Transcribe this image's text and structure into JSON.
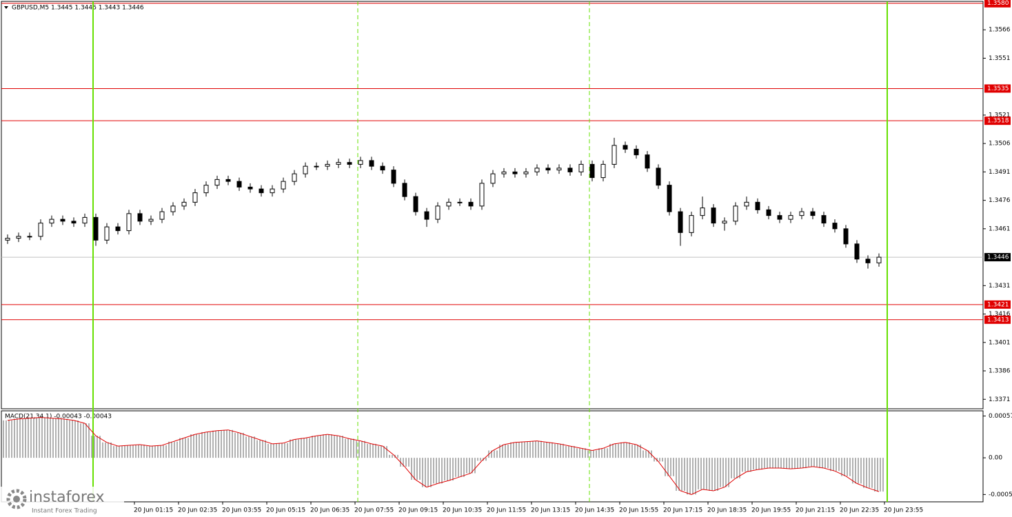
{
  "chart_data": [
    {
      "type": "candlestick",
      "title": "GBPUSD,M5 1.3445 1.3446 1.3443 1.3446",
      "x": [
        -31,
        -27,
        -23,
        -19,
        -15,
        -11,
        -7,
        -3,
        1,
        5,
        9,
        13,
        17,
        21,
        25,
        29,
        33,
        37,
        41,
        45,
        49,
        53,
        57,
        61,
        65,
        69,
        73,
        77,
        81,
        85,
        89,
        93,
        97,
        101,
        105,
        109,
        113,
        117,
        121,
        125,
        129,
        133,
        137,
        141,
        145,
        149,
        153,
        157,
        161,
        165,
        169,
        173,
        177,
        181,
        185,
        189,
        193,
        197,
        201,
        205,
        209,
        213,
        217,
        221,
        225,
        229,
        233,
        237,
        241,
        245,
        249,
        253,
        257,
        261,
        265,
        269,
        273,
        277,
        281,
        285
      ],
      "open": [
        1.3455,
        1.3456,
        1.3457,
        1.3457,
        1.3464,
        1.3466,
        1.3465,
        1.3464,
        1.3467,
        1.3455,
        1.3462,
        1.346,
        1.3469,
        1.3465,
        1.3466,
        1.347,
        1.3473,
        1.3475,
        1.348,
        1.3484,
        1.3487,
        1.3486,
        1.3483,
        1.3482,
        1.348,
        1.3482,
        1.3486,
        1.349,
        1.3494,
        1.3494,
        1.3495,
        1.3496,
        1.3495,
        1.3497,
        1.3494,
        1.3492,
        1.3485,
        1.3478,
        1.347,
        1.3466,
        1.3473,
        1.3475,
        1.3475,
        1.3473,
        1.3485,
        1.349,
        1.3491,
        1.349,
        1.3491,
        1.3493,
        1.3492,
        1.3493,
        1.3491,
        1.3495,
        1.3488,
        1.3495,
        1.3505,
        1.3503,
        1.35,
        1.3493,
        1.3484,
        1.347,
        1.3459,
        1.3468,
        1.3472,
        1.3464,
        1.3465,
        1.3473,
        1.3475,
        1.3471,
        1.3468,
        1.3466,
        1.3468,
        1.347,
        1.3468,
        1.3464,
        1.3461,
        1.3453,
        1.3445,
        1.3443
      ],
      "high": [
        1.3458,
        1.3459,
        1.3459,
        1.3466,
        1.3468,
        1.3468,
        1.3467,
        1.3469,
        1.3469,
        1.3464,
        1.3464,
        1.3471,
        1.3471,
        1.3468,
        1.3472,
        1.3475,
        1.3477,
        1.3482,
        1.3486,
        1.3489,
        1.3489,
        1.3488,
        1.3485,
        1.3484,
        1.3484,
        1.3488,
        1.3492,
        1.3496,
        1.3496,
        1.3497,
        1.3498,
        1.3498,
        1.3499,
        1.3499,
        1.3496,
        1.3494,
        1.3487,
        1.348,
        1.3472,
        1.3475,
        1.3477,
        1.3477,
        1.3477,
        1.3487,
        1.3492,
        1.3493,
        1.3493,
        1.3493,
        1.3495,
        1.3495,
        1.3495,
        1.3495,
        1.3497,
        1.3497,
        1.3497,
        1.3509,
        1.3507,
        1.3505,
        1.3502,
        1.3495,
        1.3486,
        1.3472,
        1.347,
        1.3478,
        1.3474,
        1.3467,
        1.3475,
        1.3478,
        1.3477,
        1.3473,
        1.347,
        1.347,
        1.3472,
        1.3472,
        1.347,
        1.3466,
        1.3463,
        1.3455,
        1.3447,
        1.3448
      ],
      "low": [
        1.3453,
        1.3454,
        1.3455,
        1.3455,
        1.3462,
        1.3463,
        1.3462,
        1.3462,
        1.3452,
        1.3453,
        1.3458,
        1.3458,
        1.3463,
        1.3463,
        1.3464,
        1.3468,
        1.3471,
        1.3473,
        1.3478,
        1.3482,
        1.3484,
        1.3481,
        1.348,
        1.3478,
        1.3478,
        1.348,
        1.3484,
        1.3488,
        1.3492,
        1.3492,
        1.3493,
        1.3493,
        1.3493,
        1.3492,
        1.349,
        1.3483,
        1.3476,
        1.3468,
        1.3462,
        1.3464,
        1.3471,
        1.3473,
        1.3471,
        1.3471,
        1.3483,
        1.3488,
        1.3488,
        1.3488,
        1.3489,
        1.349,
        1.349,
        1.3489,
        1.3489,
        1.3486,
        1.3486,
        1.3493,
        1.3501,
        1.3498,
        1.3491,
        1.3482,
        1.3468,
        1.3452,
        1.3457,
        1.3466,
        1.3462,
        1.346,
        1.3463,
        1.3471,
        1.3469,
        1.3466,
        1.3464,
        1.3464,
        1.3466,
        1.3466,
        1.3462,
        1.3459,
        1.3451,
        1.3443,
        1.344,
        1.3441
      ],
      "close": [
        1.3456,
        1.3457,
        1.3457,
        1.3464,
        1.3466,
        1.3465,
        1.3464,
        1.3467,
        1.3455,
        1.3462,
        1.346,
        1.3469,
        1.3465,
        1.3466,
        1.347,
        1.3473,
        1.3475,
        1.348,
        1.3484,
        1.3487,
        1.3486,
        1.3483,
        1.3482,
        1.348,
        1.3482,
        1.3486,
        1.349,
        1.3494,
        1.3494,
        1.3495,
        1.3496,
        1.3495,
        1.3497,
        1.3494,
        1.3492,
        1.3485,
        1.3478,
        1.347,
        1.3466,
        1.3473,
        1.3475,
        1.3475,
        1.3473,
        1.3485,
        1.349,
        1.3491,
        1.349,
        1.3491,
        1.3493,
        1.3492,
        1.3493,
        1.3491,
        1.3495,
        1.3488,
        1.3495,
        1.3505,
        1.3503,
        1.35,
        1.3493,
        1.3484,
        1.347,
        1.3459,
        1.3468,
        1.3472,
        1.3464,
        1.3465,
        1.3473,
        1.3475,
        1.3471,
        1.3468,
        1.3466,
        1.3468,
        1.347,
        1.3468,
        1.3464,
        1.3461,
        1.3453,
        1.3445,
        1.3443,
        1.3446
      ],
      "xlim": [
        -33.25,
        322.75
      ],
      "ylim": [
        1.3366,
        1.3581
      ],
      "yticks": [
        1.3566,
        1.3551,
        1.3521,
        1.3506,
        1.3491,
        1.3476,
        1.3461,
        1.3431,
        1.3416,
        1.3401,
        1.3386,
        1.3371
      ],
      "levels": [
        {
          "value": 1.358,
          "label": "1.3580"
        },
        {
          "value": 1.3535,
          "label": "1.3535"
        },
        {
          "value": 1.3518,
          "label": "1.3518"
        },
        {
          "value": 1.3421,
          "label": "1.3421"
        },
        {
          "value": 1.3413,
          "label": "1.3413"
        }
      ],
      "level_color": "#e00000",
      "last_price": {
        "value": 1.3446,
        "label": "1.3446"
      },
      "vlines": [
        {
          "value": 0,
          "style": "solid"
        },
        {
          "value": 96,
          "style": "dashed"
        },
        {
          "value": 180,
          "style": "dashed"
        },
        {
          "value": 288,
          "style": "solid"
        }
      ],
      "vline_color": "#66e000"
    },
    {
      "type": "macd",
      "title": "MACD(21,34,1) -0.00043 -0.00043",
      "x": [
        -31,
        -27,
        -23,
        -19,
        -15,
        -11,
        -7,
        -3,
        1,
        5,
        9,
        13,
        17,
        21,
        25,
        29,
        33,
        37,
        41,
        45,
        49,
        53,
        57,
        61,
        65,
        69,
        73,
        77,
        81,
        85,
        89,
        93,
        97,
        101,
        105,
        109,
        113,
        117,
        121,
        125,
        129,
        133,
        137,
        141,
        145,
        149,
        153,
        157,
        161,
        165,
        169,
        173,
        177,
        181,
        185,
        189,
        193,
        197,
        201,
        205,
        209,
        213,
        217,
        221,
        225,
        229,
        233,
        237,
        241,
        245,
        249,
        253,
        257,
        261,
        265,
        269,
        273,
        277,
        281,
        285
      ],
      "values": [
        0.00051,
        0.00053,
        0.00054,
        0.00055,
        0.00054,
        0.00053,
        0.00051,
        0.00047,
        0.0003,
        0.00021,
        0.00016,
        0.00017,
        0.00018,
        0.00016,
        0.00017,
        0.00022,
        0.00027,
        0.00032,
        0.00035,
        0.00037,
        0.00038,
        0.00034,
        0.00029,
        0.00024,
        0.00019,
        0.0002,
        0.00025,
        0.00027,
        0.0003,
        0.00032,
        0.0003,
        0.00026,
        0.00023,
        0.00019,
        0.00016,
        4e-05,
        -0.00012,
        -0.0003,
        -0.0004,
        -0.00035,
        -0.00031,
        -0.00026,
        -0.00021,
        -4e-05,
        0.0001,
        0.00018,
        0.00021,
        0.00022,
        0.00023,
        0.00021,
        0.00019,
        0.00016,
        0.00013,
        0.0001,
        0.00013,
        0.00019,
        0.00021,
        0.00018,
        0.0001,
        -5e-05,
        -0.00025,
        -0.00045,
        -0.0005,
        -0.00043,
        -0.00045,
        -0.0004,
        -0.00028,
        -0.00019,
        -0.00016,
        -0.00014,
        -0.00014,
        -0.00015,
        -0.00014,
        -0.00012,
        -0.00014,
        -0.00018,
        -0.00025,
        -0.00035,
        -0.00041,
        -0.00046
      ],
      "bar_color": "#b0b0b0",
      "line_color": "#e00000",
      "xlim": [
        -33.25,
        322.75
      ],
      "ylim": [
        -0.0006,
        0.00064
      ],
      "yticks": [
        0.00057,
        {
          "value": 0,
          "label": "0.00"
        },
        -0.0005
      ],
      "xticks": [
        {
          "value": 15,
          "label": "20 Jun 01:15"
        },
        {
          "value": 31,
          "label": "20 Jun 02:35"
        },
        {
          "value": 47,
          "label": "20 Jun 03:55"
        },
        {
          "value": 63,
          "label": "20 Jun 05:15"
        },
        {
          "value": 79,
          "label": "20 Jun 06:35"
        },
        {
          "value": 95,
          "label": "20 Jun 07:55"
        },
        {
          "value": 111,
          "label": "20 Jun 09:15"
        },
        {
          "value": 127,
          "label": "20 Jun 10:35"
        },
        {
          "value": 143,
          "label": "20 Jun 11:55"
        },
        {
          "value": 159,
          "label": "20 Jun 13:15"
        },
        {
          "value": 175,
          "label": "20 Jun 14:35"
        },
        {
          "value": 191,
          "label": "20 Jun 15:55"
        },
        {
          "value": 207,
          "label": "20 Jun 17:15"
        },
        {
          "value": 223,
          "label": "20 Jun 18:35"
        },
        {
          "value": 239,
          "label": "20 Jun 19:55"
        },
        {
          "value": 255,
          "label": "20 Jun 21:15"
        },
        {
          "value": 271,
          "label": "20 Jun 22:35"
        },
        {
          "value": 287,
          "label": "20 Jun 23:55"
        }
      ]
    }
  ],
  "watermark": {
    "brand": "instaforex",
    "tagline": "Instant Forex Trading"
  }
}
